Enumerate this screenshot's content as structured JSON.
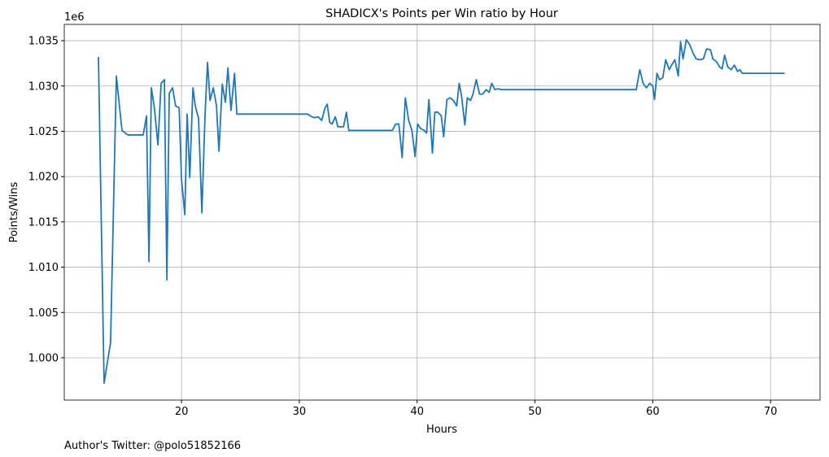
{
  "chart_data": {
    "type": "line",
    "title": "SHADICX's Points per Win ratio by Hour",
    "xlabel": "Hours",
    "ylabel": "Points/Wins",
    "y_offset_label": "1e6",
    "footer": "Author's Twitter: @polo51852166",
    "grid": true,
    "xlim": [
      10.05,
      74.2
    ],
    "ylim": [
      995330,
      1036800
    ],
    "xticks": [
      20,
      30,
      40,
      50,
      60,
      70
    ],
    "yticks": [
      {
        "value": 1000000,
        "label": "1.000"
      },
      {
        "value": 1005000,
        "label": "1.005"
      },
      {
        "value": 1010000,
        "label": "1.010"
      },
      {
        "value": 1015000,
        "label": "1.015"
      },
      {
        "value": 1020000,
        "label": "1.020"
      },
      {
        "value": 1025000,
        "label": "1.025"
      },
      {
        "value": 1030000,
        "label": "1.030"
      },
      {
        "value": 1035000,
        "label": "1.035"
      }
    ],
    "x": [
      12.95,
      13.43,
      13.98,
      14.47,
      14.95,
      15.44,
      15.9,
      16.75,
      17.03,
      17.24,
      17.44,
      17.7,
      18.0,
      18.27,
      18.55,
      18.76,
      18.96,
      19.24,
      19.5,
      19.8,
      20.0,
      20.28,
      20.48,
      20.7,
      20.97,
      21.17,
      21.45,
      21.73,
      22.0,
      22.21,
      22.42,
      22.7,
      22.97,
      23.18,
      23.46,
      23.73,
      23.94,
      24.2,
      24.5,
      24.7,
      30.7,
      31.06,
      31.33,
      31.6,
      31.9,
      32.16,
      32.37,
      32.58,
      32.78,
      33.06,
      33.27,
      33.75,
      34.0,
      34.2,
      37.9,
      38.18,
      38.45,
      38.73,
      39.0,
      39.28,
      39.56,
      39.83,
      40.04,
      40.3,
      40.6,
      40.8,
      41.0,
      41.3,
      41.5,
      41.77,
      42.05,
      42.25,
      42.53,
      42.8,
      43.08,
      43.36,
      43.57,
      43.77,
      44.05,
      44.26,
      44.53,
      44.74,
      45.02,
      45.3,
      45.57,
      45.85,
      46.12,
      46.33,
      46.6,
      46.88,
      47.16,
      58.6,
      58.9,
      59.18,
      59.46,
      59.74,
      60.0,
      60.15,
      60.36,
      60.57,
      60.85,
      61.1,
      61.4,
      61.6,
      61.88,
      62.16,
      62.36,
      62.57,
      62.85,
      63.12,
      63.4,
      63.68,
      64.0,
      64.3,
      64.57,
      64.9,
      65.1,
      65.4,
      65.68,
      65.89,
      66.1,
      66.37,
      66.65,
      66.93,
      67.2,
      67.4,
      67.6,
      71.2
    ],
    "series": [
      {
        "name": "Points/Wins",
        "color": "#1f77b4",
        "values": [
          1033200,
          997200,
          1001700,
          1031100,
          1025100,
          1024600,
          1024600,
          1024600,
          1026700,
          1010600,
          1029800,
          1027600,
          1023500,
          1030300,
          1030700,
          1008600,
          1029200,
          1029800,
          1027800,
          1027600,
          1019700,
          1015800,
          1026900,
          1019900,
          1029800,
          1027800,
          1026400,
          1016000,
          1026900,
          1032600,
          1028400,
          1029800,
          1027800,
          1022800,
          1030200,
          1028200,
          1032000,
          1027300,
          1031400,
          1026900,
          1026900,
          1026600,
          1026500,
          1026600,
          1026200,
          1027500,
          1028000,
          1026000,
          1025800,
          1026600,
          1025500,
          1025500,
          1027100,
          1025100,
          1025100,
          1025800,
          1025800,
          1022100,
          1028700,
          1026200,
          1025100,
          1022200,
          1025800,
          1025300,
          1025100,
          1024800,
          1028500,
          1022600,
          1027100,
          1027100,
          1026700,
          1024400,
          1028500,
          1028700,
          1028400,
          1027800,
          1030300,
          1028900,
          1025700,
          1028700,
          1028400,
          1029100,
          1030700,
          1029100,
          1029100,
          1029600,
          1029300,
          1030300,
          1029600,
          1029700,
          1029600,
          1029600,
          1031800,
          1030300,
          1029800,
          1030300,
          1030000,
          1028500,
          1031400,
          1030700,
          1030900,
          1032900,
          1031800,
          1032300,
          1032900,
          1031100,
          1034900,
          1033000,
          1035100,
          1034600,
          1033700,
          1033000,
          1032900,
          1033000,
          1034100,
          1034000,
          1033000,
          1032700,
          1032100,
          1031900,
          1033400,
          1032100,
          1031800,
          1032300,
          1031600,
          1031800,
          1031400,
          1031400
        ]
      }
    ]
  }
}
